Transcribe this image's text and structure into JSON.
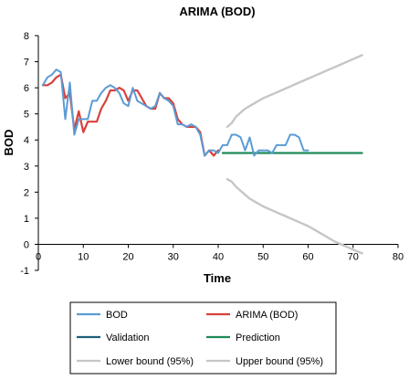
{
  "chart_data": {
    "type": "line",
    "title": "ARIMA (BOD)",
    "xlabel": "Time",
    "ylabel": "BOD",
    "xlim": [
      0,
      80
    ],
    "ylim": [
      -1,
      8
    ],
    "xticks": [
      "0",
      "10",
      "20",
      "30",
      "40",
      "50",
      "60",
      "70",
      "80"
    ],
    "yticks": [
      "-1",
      "0",
      "1",
      "2",
      "3",
      "4",
      "5",
      "6",
      "7",
      "8"
    ],
    "grid": false,
    "legend_position": "bottom",
    "series": [
      {
        "name": "BOD",
        "color": "#5b9bd5",
        "x": [
          1,
          2,
          3,
          4,
          5,
          6,
          7,
          8,
          9,
          10,
          11,
          12,
          13,
          14,
          15,
          16,
          17,
          18,
          19,
          20,
          21,
          22,
          23,
          24,
          25,
          26,
          27,
          28,
          29,
          30,
          31,
          32,
          33,
          34,
          35,
          36,
          37,
          38,
          39,
          40,
          41,
          42,
          43,
          44,
          45,
          46,
          47,
          48,
          49,
          50,
          51,
          52,
          53,
          54,
          55,
          56,
          57,
          58,
          59,
          60
        ],
        "y": [
          6.1,
          6.4,
          6.5,
          6.7,
          6.6,
          4.8,
          6.2,
          4.2,
          4.8,
          4.8,
          4.8,
          5.5,
          5.5,
          5.8,
          6.0,
          6.1,
          6.0,
          5.8,
          5.4,
          5.3,
          6.0,
          5.5,
          5.4,
          5.3,
          5.2,
          5.3,
          5.8,
          5.6,
          5.5,
          5.3,
          4.6,
          4.6,
          4.5,
          4.6,
          4.5,
          4.2,
          3.4,
          3.6,
          3.6,
          3.5,
          3.8,
          3.8,
          4.2,
          4.2,
          4.1,
          3.6,
          4.1,
          3.4,
          3.6,
          3.6,
          3.6,
          3.5,
          3.8,
          3.8,
          3.8,
          4.2,
          4.2,
          4.1,
          3.6,
          3.6
        ]
      },
      {
        "name": "ARIMA (BOD)",
        "color": "#d9403b",
        "x": [
          1,
          2,
          3,
          4,
          5,
          6,
          7,
          8,
          9,
          10,
          11,
          12,
          13,
          14,
          15,
          16,
          17,
          18,
          19,
          20,
          21,
          22,
          23,
          24,
          25,
          26,
          27,
          28,
          29,
          30,
          31,
          32,
          33,
          34,
          35,
          36,
          37,
          38,
          39,
          40
        ],
        "y": [
          6.1,
          6.1,
          6.2,
          6.4,
          6.5,
          5.6,
          5.8,
          4.4,
          5.1,
          4.3,
          4.7,
          4.7,
          4.7,
          5.2,
          5.5,
          5.9,
          5.9,
          6.0,
          5.9,
          5.5,
          5.9,
          5.9,
          5.6,
          5.3,
          5.2,
          5.2,
          5.8,
          5.6,
          5.6,
          5.4,
          4.8,
          4.6,
          4.5,
          4.5,
          4.5,
          4.3,
          3.4,
          3.6,
          3.4,
          3.6
        ]
      },
      {
        "name": "Validation",
        "color": "#1f5f7a",
        "x": [],
        "y": []
      },
      {
        "name": "Prediction",
        "color": "#1e8a5a",
        "x": [
          41,
          72
        ],
        "y": [
          3.5,
          3.5
        ]
      },
      {
        "name": "Lower bound (95%)",
        "color": "#c6c6c6",
        "x": [
          42,
          43,
          44,
          45,
          46,
          47,
          48,
          50,
          52,
          54,
          56,
          58,
          60,
          62,
          64,
          66,
          68,
          70,
          72
        ],
        "y": [
          2.5,
          2.4,
          2.2,
          2.05,
          1.9,
          1.75,
          1.65,
          1.45,
          1.3,
          1.15,
          1.0,
          0.85,
          0.7,
          0.5,
          0.3,
          0.1,
          -0.05,
          -0.2,
          -0.35
        ]
      },
      {
        "name": "Upper bound (95%)",
        "color": "#c6c6c6",
        "x": [
          42,
          43,
          44,
          45,
          46,
          47,
          48,
          50,
          52,
          54,
          56,
          58,
          60,
          62,
          64,
          66,
          68,
          70,
          72
        ],
        "y": [
          4.5,
          4.65,
          4.9,
          5.05,
          5.2,
          5.3,
          5.4,
          5.6,
          5.75,
          5.9,
          6.05,
          6.2,
          6.35,
          6.5,
          6.65,
          6.8,
          6.95,
          7.1,
          7.25
        ]
      }
    ]
  }
}
